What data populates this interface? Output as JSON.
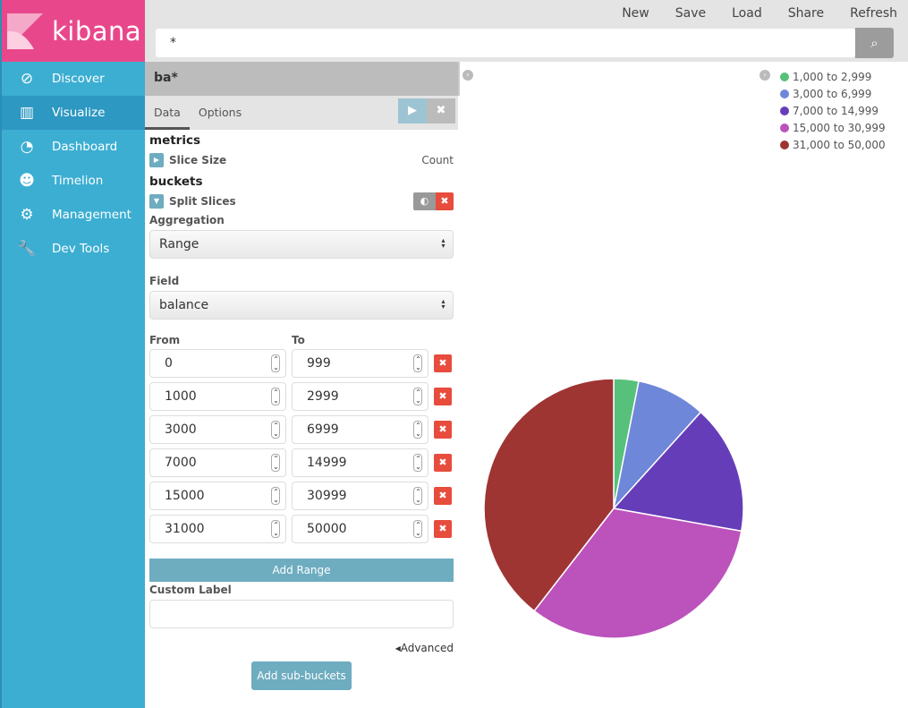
{
  "app": {
    "name": "kibana"
  },
  "sidebar": {
    "items": [
      {
        "label": "Discover",
        "icon": "compass-icon",
        "glyph": "⊘"
      },
      {
        "label": "Visualize",
        "icon": "bar-chart-icon",
        "glyph": "▥"
      },
      {
        "label": "Dashboard",
        "icon": "dashboard-icon",
        "glyph": "◔"
      },
      {
        "label": "Timelion",
        "icon": "timelion-icon",
        "glyph": "☻"
      },
      {
        "label": "Management",
        "icon": "gear-icon",
        "glyph": "⚙"
      },
      {
        "label": "Dev Tools",
        "icon": "wrench-icon",
        "glyph": "🔧"
      }
    ]
  },
  "top": {
    "menu": [
      "New",
      "Save",
      "Load",
      "Share",
      "Refresh"
    ],
    "query": "*"
  },
  "editor": {
    "title": "ba*",
    "tabs": [
      "Data",
      "Options"
    ],
    "metrics_heading": "metrics",
    "metric_label": "Slice Size",
    "metric_value": "Count",
    "buckets_heading": "buckets",
    "bucket_label": "Split Slices",
    "aggregation_label": "Aggregation",
    "aggregation_value": "Range",
    "field_label": "Field",
    "field_value": "balance",
    "from_label": "From",
    "to_label": "To",
    "ranges": [
      [
        "0",
        "999"
      ],
      [
        "1000",
        "2999"
      ],
      [
        "3000",
        "6999"
      ],
      [
        "7000",
        "14999"
      ],
      [
        "15000",
        "30999"
      ],
      [
        "31000",
        "50000"
      ]
    ],
    "add_range": "Add Range",
    "custom_label": "Custom Label",
    "custom_label_value": "",
    "advanced": "Advanced",
    "add_sub_buckets": "Add sub-buckets"
  },
  "chart_data": {
    "type": "pie",
    "categories": [
      "1,000 to 2,999",
      "3,000 to 6,999",
      "7,000 to 14,999",
      "15,000 to 30,999",
      "31,000 to 50,000"
    ],
    "values": [
      3.1,
      8.6,
      16.1,
      32.7,
      39.5
    ],
    "colors": [
      "#57c17b",
      "#6f87d8",
      "#663db8",
      "#bc52bc",
      "#9e3533"
    ],
    "legend": "top-right"
  }
}
